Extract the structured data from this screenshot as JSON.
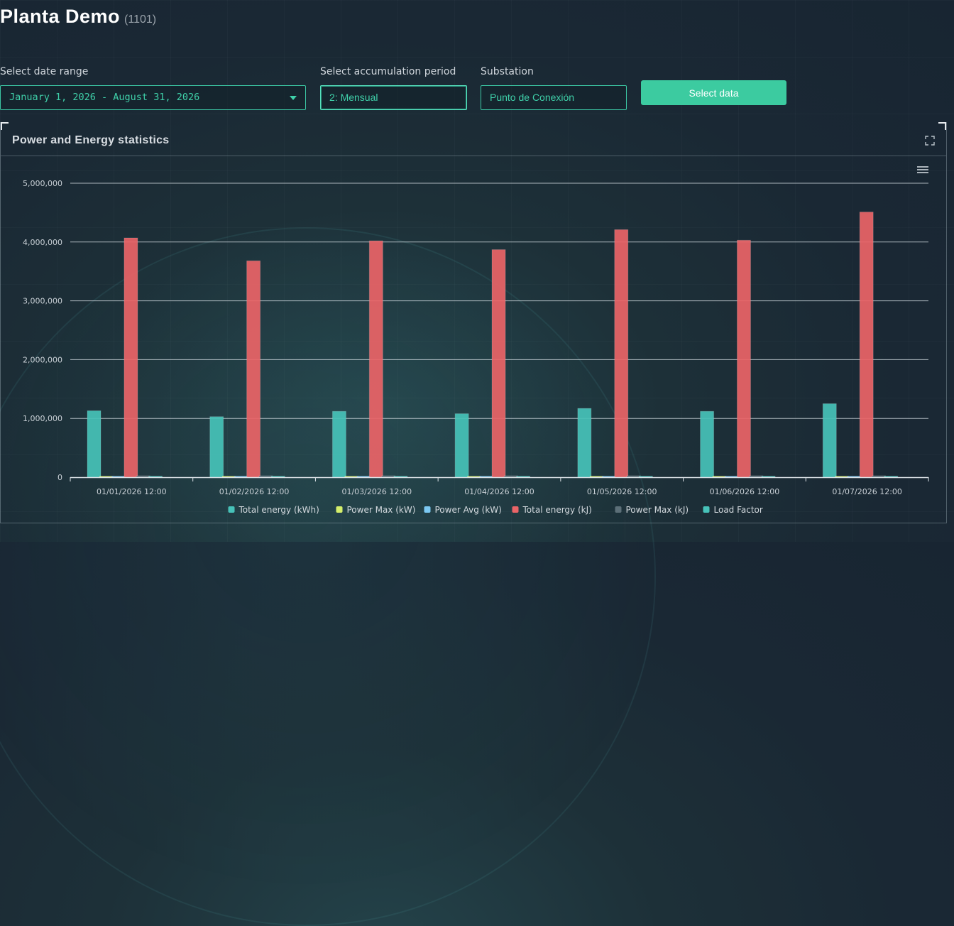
{
  "header": {
    "title": "Planta Demo",
    "plant_id": "(1101)"
  },
  "filters": {
    "date_range": {
      "label": "Select date range",
      "value": "January 1, 2026 - August 31, 2026"
    },
    "accumulation": {
      "label": "Select accumulation period",
      "value": "2: Mensual"
    },
    "substation": {
      "label": "Substation",
      "value": "Punto de Conexión"
    },
    "select_button": "Select data"
  },
  "panel": {
    "title": "Power and Energy statistics"
  },
  "icons": {
    "expand": "expand-icon",
    "menu": "hamburger-menu-icon",
    "dropdown": "chevron-down-icon"
  },
  "colors": {
    "accent": "#3ccba0",
    "total_energy_kwh": "#47c2b9",
    "power_max_kw": "#d5ef6b",
    "power_avg_kw": "#7cc8f2",
    "total_energy_kj": "#ea6467",
    "power_max_kj": "#5c6f78",
    "load_factor": "#47c2b9"
  },
  "chart_data": {
    "type": "bar",
    "categories": [
      "01/01/2026 12:00",
      "01/02/2026 12:00",
      "01/03/2026 12:00",
      "01/04/2026 12:00",
      "01/05/2026 12:00",
      "01/06/2026 12:00",
      "01/07/2026 12:00"
    ],
    "series": [
      {
        "name": "Total energy (kWh)",
        "color": "#47c2b9",
        "values": [
          1130000,
          1030000,
          1120000,
          1080000,
          1170000,
          1120000,
          1250000
        ]
      },
      {
        "name": "Power Max (kW)",
        "color": "#d5ef6b",
        "values": [
          7000,
          7000,
          7000,
          7000,
          7000,
          7000,
          7000
        ]
      },
      {
        "name": "Power Avg (kW)",
        "color": "#7cc8f2",
        "values": [
          2000,
          2000,
          2000,
          2000,
          2000,
          2000,
          2000
        ]
      },
      {
        "name": "Total energy (kJ)",
        "color": "#ea6467",
        "values": [
          4070000,
          3680000,
          4020000,
          3870000,
          4210000,
          4030000,
          4510000
        ]
      },
      {
        "name": "Power Max (kJ)",
        "color": "#5c6f78",
        "values": [
          25000,
          25000,
          25000,
          25000,
          25000,
          25000,
          25000
        ]
      },
      {
        "name": "Load Factor",
        "color": "#47c2b9",
        "values": [
          0.5,
          0.5,
          0.5,
          0.5,
          0.5,
          0.5,
          0.5
        ]
      }
    ],
    "y_ticks": [
      "0",
      "1,000,000",
      "2,000,000",
      "3,000,000",
      "4,000,000",
      "5,000,000"
    ],
    "ylim": [
      0,
      5000000
    ],
    "grid": true,
    "legend_position": "bottom-center"
  }
}
